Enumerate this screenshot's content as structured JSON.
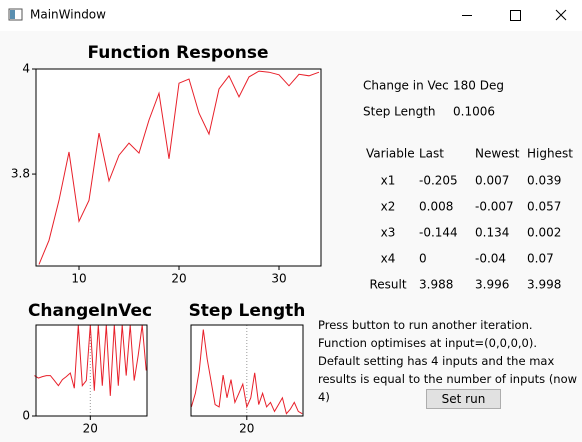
{
  "window": {
    "title": "MainWindow"
  },
  "chart_data": [
    {
      "type": "line",
      "title": "Function Response",
      "x": [
        6,
        7,
        8,
        9,
        10,
        11,
        12,
        13,
        14,
        15,
        16,
        17,
        18,
        19,
        20,
        21,
        22,
        23,
        24,
        25,
        26,
        27,
        28,
        29,
        30,
        31,
        32,
        33,
        34
      ],
      "values": [
        3.628,
        3.674,
        3.75,
        3.842,
        3.71,
        3.75,
        3.878,
        3.787,
        3.836,
        3.859,
        3.84,
        3.903,
        3.954,
        3.829,
        3.973,
        3.981,
        3.916,
        3.876,
        3.962,
        3.987,
        3.947,
        3.985,
        3.996,
        3.994,
        3.989,
        3.968,
        3.99,
        3.987,
        3.994
      ],
      "color": "#e8202a",
      "xlim": [
        5.7,
        34.2
      ],
      "ylim": [
        3.625,
        4
      ],
      "xticks": [
        10,
        20,
        30
      ],
      "yticks": [
        3.8,
        4
      ],
      "grid": false
    },
    {
      "type": "line",
      "title": "ChangeInVec",
      "x": [
        6,
        7,
        8,
        9,
        10,
        11,
        12,
        13,
        14,
        15,
        16,
        17,
        18,
        19,
        20,
        21,
        22,
        23,
        24,
        25,
        26,
        27,
        28,
        29,
        30,
        31,
        32,
        33,
        34
      ],
      "values": [
        80,
        75,
        78,
        80,
        80,
        70,
        60,
        72,
        78,
        85,
        55,
        180,
        60,
        70,
        180,
        50,
        180,
        60,
        180,
        40,
        180,
        60,
        180,
        80,
        180,
        70,
        120,
        180,
        90
      ],
      "color": "#e8202a",
      "xlim": [
        6.4,
        34.2
      ],
      "ylim": [
        0,
        180
      ],
      "xticks": [
        20
      ],
      "yticks": [
        0
      ],
      "grid": true
    },
    {
      "type": "line",
      "title": "Step Length",
      "x": [
        6,
        7,
        8,
        9,
        10,
        11,
        12,
        13,
        14,
        15,
        16,
        17,
        18,
        19,
        20,
        21,
        22,
        23,
        24,
        25,
        26,
        27,
        28,
        29,
        30,
        31,
        32,
        33,
        34
      ],
      "values": [
        0.04,
        0.1,
        0.2,
        0.38,
        0.25,
        0.15,
        0.05,
        0.04,
        0.18,
        0.08,
        0.16,
        0.06,
        0.1,
        0.14,
        0.04,
        0.08,
        0.19,
        0.05,
        0.1,
        0.04,
        0.06,
        0.02,
        0.05,
        0.08,
        0.01,
        0.03,
        0.06,
        0.02,
        0.01
      ],
      "color": "#e8202a",
      "xlim": [
        5.9,
        34.2
      ],
      "ylim": [
        0,
        0.4
      ],
      "xticks": [
        20
      ],
      "grid": true
    }
  ],
  "info": [
    [
      "Change in Vec",
      "180 Deg"
    ],
    [
      "Step Length",
      "0.1006"
    ]
  ],
  "table": {
    "headers": [
      "Variable",
      "Last",
      "Newest",
      "Highest"
    ],
    "rows": [
      [
        "x1",
        -0.205,
        0.007,
        0.039
      ],
      [
        "x2",
        0.008,
        -0.007,
        0.057
      ],
      [
        "x3",
        -0.144,
        0.134,
        0.002
      ],
      [
        "x4",
        0,
        -0.04,
        0.07
      ],
      [
        "Result",
        3.988,
        3.996,
        3.998
      ]
    ]
  },
  "description": "Press button to run another iteration. Function optimises at input=(0,0,0,0). Default setting has 4 inputs and the max results is equal to the number of inputs (now 4)",
  "button": "Set run"
}
